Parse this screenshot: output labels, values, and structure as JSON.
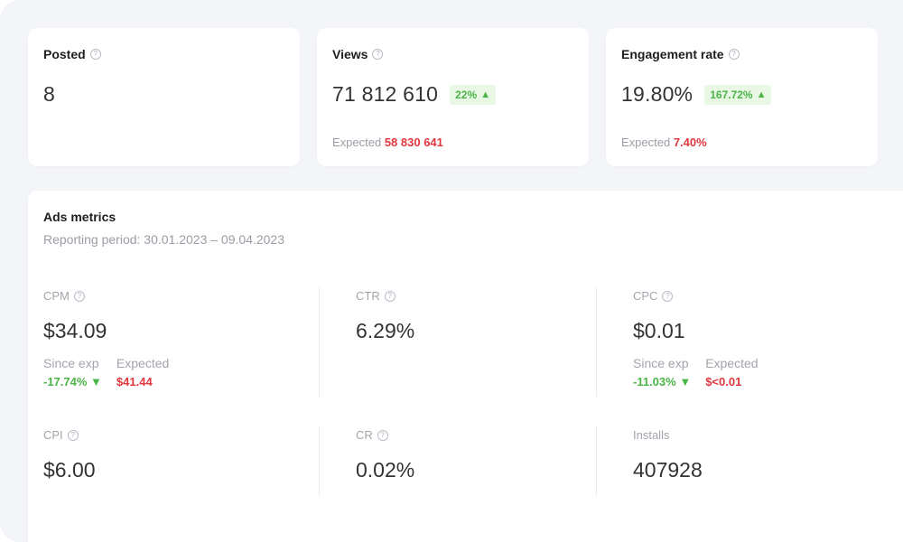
{
  "stats": {
    "posted": {
      "title": "Posted",
      "value": "8"
    },
    "views": {
      "title": "Views",
      "value": "71 812 610",
      "badge": "22%",
      "expected_label": "Expected",
      "expected_value": "58 830 641"
    },
    "engagement": {
      "title": "Engagement rate",
      "value": "19.80%",
      "badge": "167.72%",
      "expected_label": "Expected",
      "expected_value": "7.40%"
    }
  },
  "ads": {
    "title": "Ads metrics",
    "period": "Reporting period: 30.01.2023 – 09.04.2023",
    "cpm": {
      "label": "CPM",
      "value": "$34.09",
      "since_label": "Since exp",
      "since_value": "-17.74%",
      "expected_label": "Expected",
      "expected_value": "$41.44"
    },
    "ctr": {
      "label": "CTR",
      "value": "6.29%"
    },
    "cpc": {
      "label": "CPC",
      "value": "$0.01",
      "since_label": "Since exp",
      "since_value": "-11.03%",
      "expected_label": "Expected",
      "expected_value": "$<0.01"
    },
    "cpi": {
      "label": "CPI",
      "value": "$6.00"
    },
    "cr": {
      "label": "CR",
      "value": "0.02%"
    },
    "installs": {
      "label": "Installs",
      "value": "407928"
    }
  },
  "icons": {
    "help": "?",
    "up": "▲",
    "down": "▼"
  },
  "colors": {
    "positive": "#4bb548",
    "negative": "#e0383e",
    "badge_bg": "#e9f7e5"
  }
}
